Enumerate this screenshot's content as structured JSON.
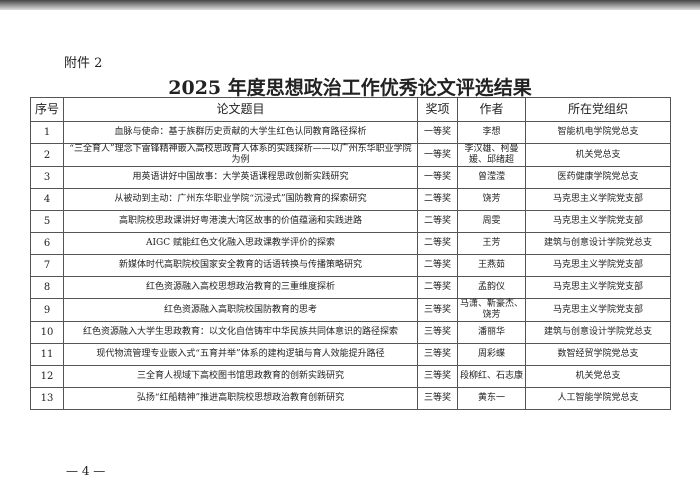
{
  "attachment": "附件 2",
  "title": "2025 年度思想政治工作优秀论文评选结果",
  "headers": [
    "序号",
    "论文题目",
    "奖项",
    "作者",
    "所在党组织"
  ],
  "rows": [
    [
      "1",
      "血脉与使命：基于族群历史贡献的大学生红色认同教育路径探析",
      "一等奖",
      "李想",
      "智能机电学院党总支"
    ],
    [
      "2",
      "“三全育人”理念下雷锋精神嵌入高校思政育人体系的实践探析——以广州东华职业学院为例",
      "一等奖",
      "李汉雄、柯曼媛、邱绪超",
      "机关党总支"
    ],
    [
      "3",
      "用英语讲好中国故事：大学英语课程思政创新实践研究",
      "一等奖",
      "曾滢滢",
      "医药健康学院党总支"
    ],
    [
      "4",
      "从被动到主动：广州东华职业学院“沉浸式”国防教育的探索研究",
      "二等奖",
      "饶芳",
      "马克思主义学院党支部"
    ],
    [
      "5",
      "高职院校思政课讲好粤港澳大湾区故事的价值蕴涵和实践进路",
      "二等奖",
      "周雯",
      "马克思主义学院党支部"
    ],
    [
      "6",
      "AIGC 赋能红色文化融入思政课教学评价的探索",
      "二等奖",
      "王芳",
      "建筑与创意设计学院党总支"
    ],
    [
      "7",
      "新媒体时代高职院校国家安全教育的话语转换与传播策略研究",
      "二等奖",
      "王燕茹",
      "马克思主义学院党支部"
    ],
    [
      "8",
      "红色资源融入高校思想政治教育的三重维度探析",
      "二等奖",
      "孟韵仪",
      "马克思主义学院党支部"
    ],
    [
      "9",
      "红色资源融入高职院校国防教育的思考",
      "三等奖",
      "马潇、靳豪杰、饶芳",
      "马克思主义学院党支部"
    ],
    [
      "10",
      "红色资源融入大学生思政教育：以文化自信铸牢中华民族共同体意识的路径探索",
      "三等奖",
      "潘丽华",
      "建筑与创意设计学院党总支"
    ],
    [
      "11",
      "现代物流管理专业嵌入式“五育并举”体系的建构逻辑与育人效能提升路径",
      "三等奖",
      "周彩蝶",
      "数智经贸学院党总支"
    ],
    [
      "12",
      "三全育人视域下高校图书馆思政教育的创新实践研究",
      "三等奖",
      "段柳红、石志康",
      "机关党总支"
    ],
    [
      "13",
      "弘扬“红船精神”推进高职院校思想政治教育创新研究",
      "三等奖",
      "黄东一",
      "人工智能学院党总支"
    ]
  ],
  "page_number": "— 4 —"
}
